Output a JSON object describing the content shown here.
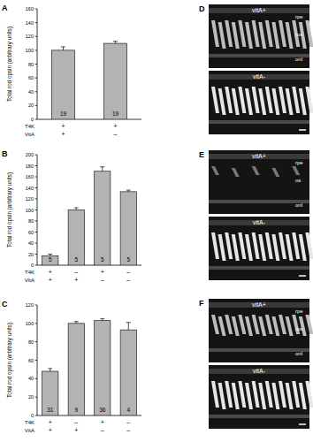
{
  "chart_data": [
    {
      "type": "bar",
      "title": "A",
      "y_label": "Total rod opsin (arbitrary units)",
      "categories": [
        null,
        null
      ],
      "series": [
        {
          "color": "#b3b3b3",
          "values": [
            100,
            110
          ],
          "errors": [
            5,
            3
          ],
          "n": [
            19,
            19
          ]
        }
      ],
      "ylim": [
        0,
        160
      ],
      "yticks": [
        0,
        20,
        40,
        60,
        80,
        100,
        120,
        140,
        160
      ],
      "condition_table": [
        {
          "label": "T4K",
          "values": [
            "+",
            "+"
          ]
        },
        {
          "label": "VitA",
          "values": [
            "+",
            "–"
          ]
        }
      ]
    },
    {
      "type": "bar",
      "title": "B",
      "y_label": "Total rod opsin (arbitrary units)",
      "categories": [
        null,
        null,
        null,
        null
      ],
      "series": [
        {
          "color": "#b3b3b3",
          "values": [
            17,
            100,
            170,
            133
          ],
          "errors": [
            3,
            4,
            8,
            3
          ],
          "n": [
            5,
            5,
            5,
            5
          ]
        }
      ],
      "ylim": [
        0,
        200
      ],
      "yticks": [
        0,
        20,
        40,
        60,
        80,
        100,
        120,
        140,
        160,
        180,
        200
      ],
      "condition_table": [
        {
          "label": "T4K",
          "values": [
            "+",
            "–",
            "+",
            "–"
          ]
        },
        {
          "label": "VitA",
          "values": [
            "+",
            "+",
            "–",
            "–"
          ]
        }
      ]
    },
    {
      "type": "bar",
      "title": "C",
      "y_label": "Total rod opsin (arbitrary units)",
      "categories": [
        null,
        null,
        null,
        null
      ],
      "series": [
        {
          "color": "#b3b3b3",
          "values": [
            48,
            100,
            103,
            93
          ],
          "errors": [
            3,
            2,
            2,
            8
          ],
          "n": [
            31,
            9,
            36,
            4
          ]
        }
      ],
      "ylim": [
        0,
        120
      ],
      "yticks": [
        0,
        20,
        40,
        60,
        80,
        100,
        120
      ],
      "condition_table": [
        {
          "label": "T4K",
          "values": [
            "+",
            "–",
            "+",
            "–"
          ]
        },
        {
          "label": "VitA",
          "values": [
            "+",
            "+",
            "–",
            "–"
          ]
        }
      ]
    }
  ],
  "images": [
    {
      "title": "D",
      "panels": [
        {
          "label": "vitA+",
          "layers": [
            "rpe",
            "ros",
            "onl"
          ]
        },
        {
          "label": "vitA-"
        }
      ]
    },
    {
      "title": "E",
      "panels": [
        {
          "label": "vitA+",
          "layers": [
            "rpe",
            "os",
            "onl"
          ]
        },
        {
          "label": "vitA-"
        }
      ]
    },
    {
      "title": "F",
      "panels": [
        {
          "label": "vitA+",
          "layers": [
            "rpe",
            "ros",
            "onl"
          ]
        },
        {
          "label": "vitA-"
        }
      ]
    }
  ]
}
